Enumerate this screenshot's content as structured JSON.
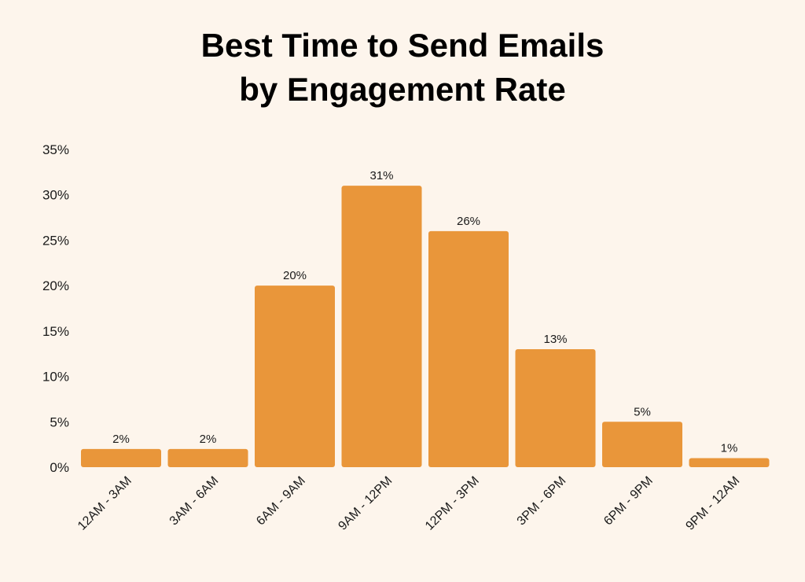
{
  "colors": {
    "background": "#fdf5ec",
    "bar": "#e9963a",
    "text": "#1a1a1a"
  },
  "chart_data": {
    "type": "bar",
    "title": [
      "Best Time to Send Emails",
      "by Engagement Rate"
    ],
    "xlabel": "",
    "ylabel": "",
    "categories": [
      "12AM - 3AM",
      "3AM - 6AM",
      "6AM - 9AM",
      "9AM - 12PM",
      "12PM - 3PM",
      "3PM - 6PM",
      "6PM - 9PM",
      "9PM - 12AM"
    ],
    "values": [
      2,
      2,
      20,
      31,
      26,
      13,
      5,
      1
    ],
    "value_labels": [
      "2%",
      "2%",
      "20%",
      "31%",
      "26%",
      "13%",
      "5%",
      "1%"
    ],
    "ylim": [
      0,
      35
    ],
    "yticks": [
      0,
      5,
      10,
      15,
      20,
      25,
      30,
      35
    ],
    "ytick_labels": [
      "0%",
      "5%",
      "10%",
      "15%",
      "20%",
      "25%",
      "30%",
      "35%"
    ],
    "grid": false,
    "legend": "none"
  }
}
